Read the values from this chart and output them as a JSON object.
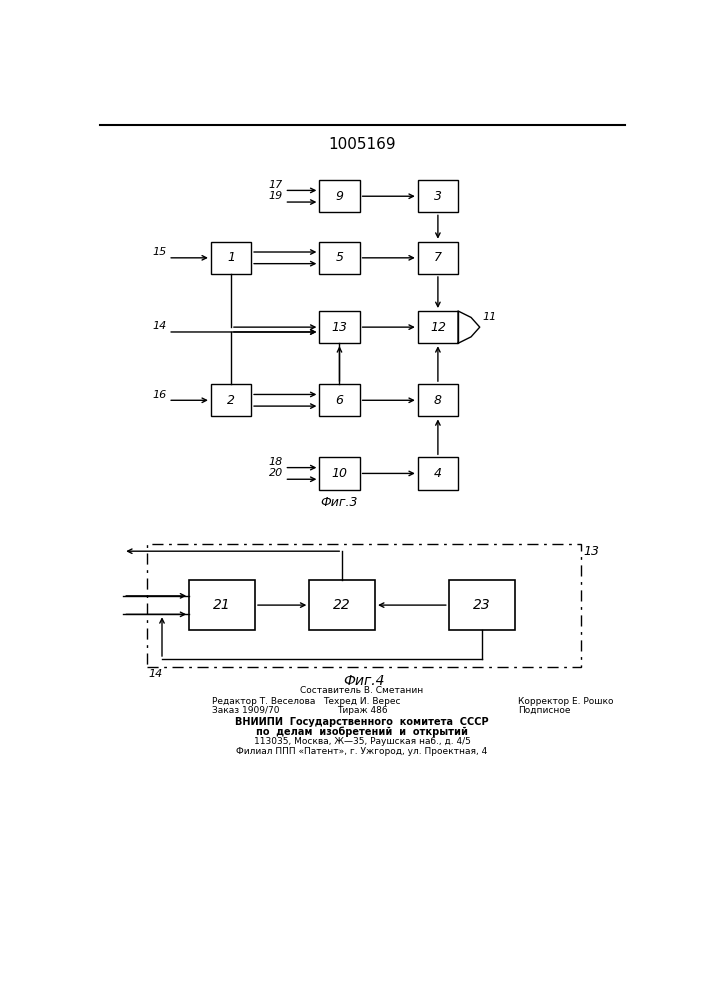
{
  "title": "1005169",
  "background_color": "#ffffff",
  "line_color": "#000000",
  "fig3_label": "Фиг.3",
  "fig4_label": "Фиг.4",
  "footer_composer": "Составитель В. Сметанин",
  "footer_editor": "Редактор Т. Веселова",
  "footer_techred": "Техред И. Верес",
  "footer_corrector": "Корректор Е. Рошко",
  "footer_order": "Заказ 1909/70",
  "footer_tirazh": "Тираж 486",
  "footer_podp": "Подписное",
  "footer_vniip1": "ВНИИПИ  Государственного  комитета  СССР",
  "footer_vniip2": "по  делам  изобретений  и  открытий",
  "footer_addr1": "113035, Москва, Ж—35, Раушская наб., д. 4/5",
  "footer_addr2": "Филиал ППП «Патент», г. Ужгород, ул. Проектная, 4"
}
